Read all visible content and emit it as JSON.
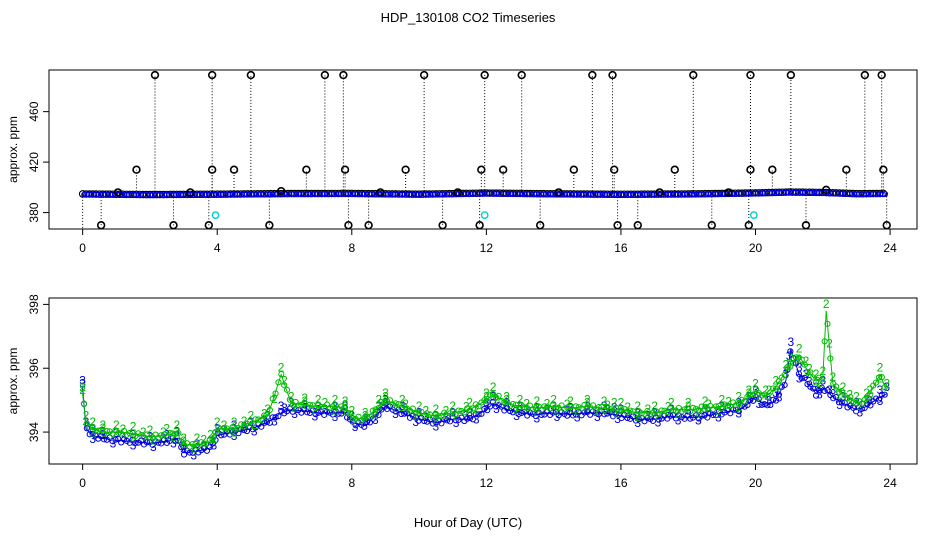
{
  "title": "HDP_130108  CO2 Timeseries",
  "xlabel": "Hour of Day (UTC)",
  "colors": {
    "black": "#000000",
    "blue": "#0000dd",
    "green": "#00bb00",
    "cyan": "#00cccc"
  },
  "chart_data": [
    {
      "type": "scatter",
      "ylabel": "approx. ppm",
      "xlim": [
        -1,
        24.8
      ],
      "ylim": [
        367,
        493
      ],
      "xticks": [
        0,
        4,
        8,
        12,
        16,
        20,
        24
      ],
      "yticks": [
        380,
        420,
        460
      ],
      "baseline_black": [
        [
          0,
          394.8
        ],
        [
          2,
          394.3
        ],
        [
          4,
          394.6
        ],
        [
          6,
          395.1
        ],
        [
          8,
          395.2
        ],
        [
          10,
          394.6
        ],
        [
          12,
          395.5
        ],
        [
          14,
          394.9
        ],
        [
          16,
          394.5
        ],
        [
          18,
          394.8
        ],
        [
          20,
          395.6
        ],
        [
          21,
          396.3
        ],
        [
          22,
          396.0
        ],
        [
          23,
          395.0
        ],
        [
          23.8,
          395.2
        ]
      ],
      "spikes_high": [
        {
          "x": 2.15,
          "y": 489
        },
        {
          "x": 3.85,
          "y": 489
        },
        {
          "x": 5.0,
          "y": 489
        },
        {
          "x": 7.2,
          "y": 489
        },
        {
          "x": 7.75,
          "y": 489
        },
        {
          "x": 10.15,
          "y": 489
        },
        {
          "x": 11.95,
          "y": 489
        },
        {
          "x": 13.05,
          "y": 489
        },
        {
          "x": 15.15,
          "y": 489
        },
        {
          "x": 15.75,
          "y": 489
        },
        {
          "x": 18.15,
          "y": 489
        },
        {
          "x": 19.85,
          "y": 489
        },
        {
          "x": 21.05,
          "y": 489
        },
        {
          "x": 23.25,
          "y": 489
        },
        {
          "x": 23.75,
          "y": 489
        },
        {
          "x": 1.6,
          "y": 414
        },
        {
          "x": 3.85,
          "y": 414
        },
        {
          "x": 4.5,
          "y": 414
        },
        {
          "x": 6.65,
          "y": 414
        },
        {
          "x": 7.8,
          "y": 414
        },
        {
          "x": 9.6,
          "y": 414
        },
        {
          "x": 11.85,
          "y": 414
        },
        {
          "x": 12.5,
          "y": 414
        },
        {
          "x": 14.6,
          "y": 414
        },
        {
          "x": 15.8,
          "y": 414
        },
        {
          "x": 17.6,
          "y": 414
        },
        {
          "x": 19.85,
          "y": 414
        },
        {
          "x": 20.5,
          "y": 414
        },
        {
          "x": 22.7,
          "y": 414
        },
        {
          "x": 23.8,
          "y": 414
        }
      ],
      "spikes_low": [
        {
          "x": 0.55,
          "y": 370
        },
        {
          "x": 2.7,
          "y": 370
        },
        {
          "x": 3.75,
          "y": 370
        },
        {
          "x": 5.55,
          "y": 370
        },
        {
          "x": 7.9,
          "y": 370
        },
        {
          "x": 8.5,
          "y": 370
        },
        {
          "x": 10.7,
          "y": 370
        },
        {
          "x": 11.8,
          "y": 370
        },
        {
          "x": 13.6,
          "y": 370
        },
        {
          "x": 15.9,
          "y": 370
        },
        {
          "x": 16.5,
          "y": 370
        },
        {
          "x": 18.7,
          "y": 370
        },
        {
          "x": 19.8,
          "y": 370
        },
        {
          "x": 21.5,
          "y": 370
        },
        {
          "x": 23.9,
          "y": 370
        }
      ],
      "mid_points": [
        {
          "x": 1.05,
          "y": 396
        },
        {
          "x": 3.2,
          "y": 396
        },
        {
          "x": 5.9,
          "y": 397
        },
        {
          "x": 8.85,
          "y": 396
        },
        {
          "x": 11.15,
          "y": 396
        },
        {
          "x": 14.15,
          "y": 396
        },
        {
          "x": 17.15,
          "y": 396
        },
        {
          "x": 19.2,
          "y": 396
        },
        {
          "x": 22.1,
          "y": 398
        }
      ],
      "cyan_points": [
        {
          "x": 3.95,
          "y": 378
        },
        {
          "x": 11.95,
          "y": 378
        },
        {
          "x": 19.95,
          "y": 378
        }
      ]
    },
    {
      "type": "line",
      "ylabel": "approx. ppm",
      "xlim": [
        -1,
        24.8
      ],
      "ylim": [
        393.0,
        398.2
      ],
      "xticks": [
        0,
        4,
        8,
        12,
        16,
        20,
        24
      ],
      "yticks": [
        394,
        396,
        398
      ],
      "series": [
        {
          "marker": "3",
          "color": "#0000dd",
          "points": [
            [
              0.0,
              395.4
            ],
            [
              0.1,
              394.1
            ],
            [
              0.3,
              393.9
            ],
            [
              0.6,
              393.8
            ],
            [
              1.0,
              393.75
            ],
            [
              1.5,
              393.7
            ],
            [
              2.0,
              393.65
            ],
            [
              2.5,
              393.7
            ],
            [
              2.8,
              393.8
            ],
            [
              3.0,
              393.35
            ],
            [
              3.4,
              393.4
            ],
            [
              3.8,
              393.5
            ],
            [
              4.0,
              393.9
            ],
            [
              4.5,
              394.0
            ],
            [
              5.0,
              394.1
            ],
            [
              5.5,
              394.3
            ],
            [
              5.9,
              394.6
            ],
            [
              6.2,
              394.7
            ],
            [
              6.6,
              394.65
            ],
            [
              7.0,
              394.6
            ],
            [
              7.5,
              394.6
            ],
            [
              7.8,
              394.6
            ],
            [
              8.0,
              394.3
            ],
            [
              8.4,
              394.2
            ],
            [
              8.8,
              394.6
            ],
            [
              9.0,
              394.8
            ],
            [
              9.5,
              394.6
            ],
            [
              10.0,
              394.4
            ],
            [
              10.5,
              394.3
            ],
            [
              11.0,
              394.4
            ],
            [
              11.5,
              394.4
            ],
            [
              12.0,
              394.7
            ],
            [
              12.2,
              394.9
            ],
            [
              12.6,
              394.7
            ],
            [
              13.0,
              394.6
            ],
            [
              13.5,
              394.55
            ],
            [
              14.0,
              394.6
            ],
            [
              14.5,
              394.55
            ],
            [
              15.0,
              394.6
            ],
            [
              15.5,
              394.6
            ],
            [
              15.8,
              394.55
            ],
            [
              16.0,
              394.5
            ],
            [
              16.5,
              394.4
            ],
            [
              17.0,
              394.4
            ],
            [
              17.5,
              394.5
            ],
            [
              18.0,
              394.45
            ],
            [
              18.5,
              394.5
            ],
            [
              19.0,
              394.6
            ],
            [
              19.5,
              394.7
            ],
            [
              19.8,
              394.9
            ],
            [
              20.0,
              395.1
            ],
            [
              20.3,
              394.8
            ],
            [
              20.6,
              395.0
            ],
            [
              20.9,
              395.6
            ],
            [
              21.05,
              396.6
            ],
            [
              21.3,
              395.8
            ],
            [
              21.5,
              395.6
            ],
            [
              21.8,
              395.2
            ],
            [
              22.0,
              395.4
            ],
            [
              22.3,
              395.1
            ],
            [
              22.6,
              394.9
            ],
            [
              23.0,
              394.7
            ],
            [
              23.3,
              394.8
            ],
            [
              23.7,
              395.1
            ],
            [
              23.9,
              395.2
            ]
          ]
        },
        {
          "marker": "2",
          "color": "#00bb00",
          "points": [
            [
              0.0,
              395.2
            ],
            [
              0.1,
              394.3
            ],
            [
              0.3,
              394.1
            ],
            [
              0.6,
              394.0
            ],
            [
              1.0,
              394.0
            ],
            [
              1.5,
              393.95
            ],
            [
              2.0,
              393.85
            ],
            [
              2.5,
              393.9
            ],
            [
              2.8,
              394.0
            ],
            [
              3.0,
              393.6
            ],
            [
              3.4,
              393.6
            ],
            [
              3.8,
              393.7
            ],
            [
              4.0,
              394.1
            ],
            [
              4.5,
              394.1
            ],
            [
              5.0,
              394.3
            ],
            [
              5.5,
              394.5
            ],
            [
              5.9,
              395.8
            ],
            [
              6.2,
              394.9
            ],
            [
              6.6,
              394.85
            ],
            [
              7.0,
              394.8
            ],
            [
              7.5,
              394.8
            ],
            [
              7.8,
              394.75
            ],
            [
              8.0,
              394.45
            ],
            [
              8.4,
              394.4
            ],
            [
              8.8,
              394.8
            ],
            [
              9.0,
              395.0
            ],
            [
              9.5,
              394.8
            ],
            [
              10.0,
              394.6
            ],
            [
              10.5,
              394.5
            ],
            [
              11.0,
              394.6
            ],
            [
              11.5,
              394.7
            ],
            [
              12.0,
              395.0
            ],
            [
              12.2,
              395.2
            ],
            [
              12.6,
              394.9
            ],
            [
              13.0,
              394.8
            ],
            [
              13.5,
              394.75
            ],
            [
              14.0,
              394.8
            ],
            [
              14.5,
              394.75
            ],
            [
              15.0,
              394.8
            ],
            [
              15.5,
              394.75
            ],
            [
              15.8,
              394.7
            ],
            [
              16.0,
              394.7
            ],
            [
              16.5,
              394.6
            ],
            [
              17.0,
              394.6
            ],
            [
              17.5,
              394.7
            ],
            [
              18.0,
              394.7
            ],
            [
              18.5,
              394.75
            ],
            [
              19.0,
              394.8
            ],
            [
              19.5,
              394.9
            ],
            [
              19.8,
              395.1
            ],
            [
              20.0,
              395.3
            ],
            [
              20.3,
              395.1
            ],
            [
              20.6,
              395.4
            ],
            [
              20.9,
              395.9
            ],
            [
              21.05,
              396.1
            ],
            [
              21.3,
              396.4
            ],
            [
              21.5,
              396.0
            ],
            [
              21.8,
              395.6
            ],
            [
              22.0,
              395.7
            ],
            [
              22.1,
              397.8
            ],
            [
              22.3,
              395.5
            ],
            [
              22.6,
              395.2
            ],
            [
              23.0,
              394.9
            ],
            [
              23.3,
              395.0
            ],
            [
              23.7,
              395.8
            ],
            [
              23.9,
              395.3
            ]
          ]
        }
      ]
    }
  ]
}
